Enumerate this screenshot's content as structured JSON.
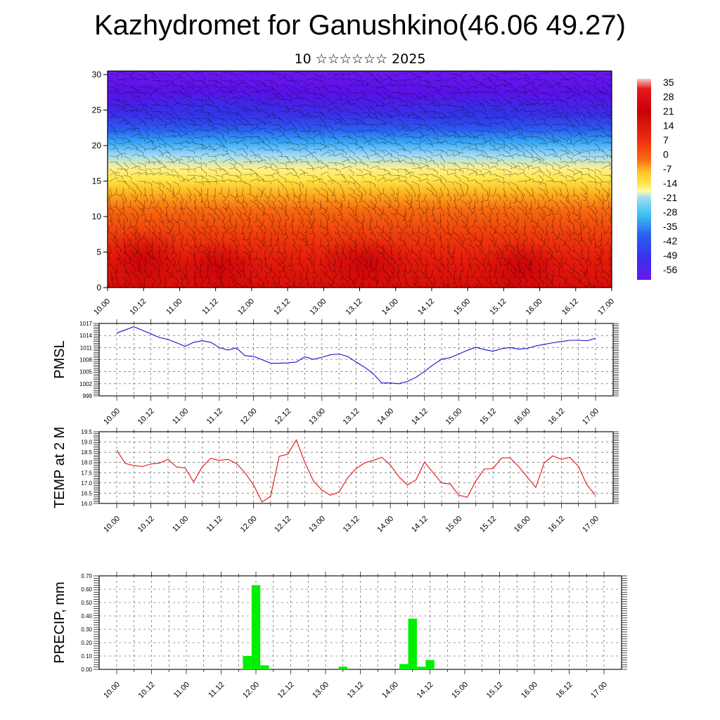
{
  "title": "Kazhydromet for Ganushkino(46.06 49.27)",
  "subtitle": "10 ☆☆☆☆☆☆ 2025",
  "time_ticks": [
    "10.00",
    "10.12",
    "11.00",
    "11.12",
    "12.00",
    "12.12",
    "13.00",
    "13.12",
    "14.00",
    "14.12",
    "15.00",
    "15.12",
    "16.00",
    "16.12",
    "17.00"
  ],
  "chart_data": [
    {
      "type": "heatmap",
      "description_of_fill": "temperature cross-section with wind barbs",
      "x_ticks": [
        "10.00",
        "10.12",
        "11.00",
        "11.12",
        "12.00",
        "12.12",
        "13.00",
        "13.12",
        "14.00",
        "14.12",
        "15.00",
        "15.12",
        "16.00",
        "16.12",
        "17.00"
      ],
      "y_ticks": [
        0,
        5,
        10,
        15,
        20,
        25,
        30
      ],
      "ylim": [
        0,
        30.5
      ],
      "colorbar_labels": [
        "35",
        "28",
        "21",
        "14",
        "7",
        "0",
        "-7",
        "-14",
        "-21",
        "-28",
        "-35",
        "-42",
        "-49",
        "-56"
      ],
      "colors": {
        "warm": "#e8170b",
        "hot": "#c8000a",
        "orange": "#f76a10",
        "yellow": "#ffe64a",
        "cyan": "#38c0f0",
        "blue": "#2a5ef0",
        "violet": "#6a18f0"
      }
    },
    {
      "type": "line",
      "ylabel": "PMSL",
      "color": "#1010d0",
      "y_ticks": [
        "1017",
        "1014",
        "1011",
        "1008",
        "1005",
        "1002",
        "999"
      ],
      "ylim": [
        999,
        1017
      ],
      "x": [
        0,
        3,
        6,
        9,
        12,
        15,
        18,
        21,
        24,
        27,
        30,
        33,
        36,
        39,
        42,
        45,
        48,
        51,
        54,
        57,
        60,
        63,
        66,
        69,
        72,
        75,
        78,
        81,
        84,
        87,
        90,
        93,
        96,
        99,
        102,
        105,
        108,
        111,
        114,
        117,
        120,
        123,
        126,
        129,
        132,
        135,
        138,
        141,
        144,
        147,
        150,
        153,
        156,
        159,
        162,
        165,
        168
      ],
      "values": [
        1014.6,
        1015.4,
        1016.2,
        1015.3,
        1014.4,
        1013.5,
        1013.0,
        1012.2,
        1011.3,
        1012.3,
        1012.7,
        1012.3,
        1011.0,
        1010.4,
        1010.9,
        1009.0,
        1008.8,
        1008.0,
        1007.1,
        1007.1,
        1007.2,
        1007.4,
        1008.7,
        1008.1,
        1008.6,
        1009.2,
        1009.4,
        1008.8,
        1007.4,
        1006.1,
        1004.5,
        1002.2,
        1002.2,
        1002.0,
        1002.6,
        1003.6,
        1005.1,
        1006.7,
        1008.1,
        1008.5,
        1009.4,
        1010.3,
        1011.1,
        1010.5,
        1010.1,
        1010.7,
        1011.0,
        1010.6,
        1010.8,
        1011.4,
        1011.8,
        1012.2,
        1012.5,
        1012.8,
        1012.8,
        1012.7,
        1013.3
      ]
    },
    {
      "type": "line",
      "ylabel": "TEMP at 2 M",
      "color": "#e01010",
      "y_ticks": [
        "19.5",
        "19.0",
        "18.5",
        "18.0",
        "17.5",
        "17.0",
        "16.5",
        "16.0"
      ],
      "ylim": [
        16.0,
        19.5
      ],
      "x": [
        0,
        3,
        6,
        9,
        12,
        15,
        18,
        21,
        24,
        27,
        30,
        33,
        36,
        39,
        42,
        45,
        48,
        51,
        54,
        57,
        60,
        63,
        66,
        69,
        72,
        75,
        78,
        81,
        84,
        87,
        90,
        93,
        96,
        99,
        102,
        105,
        108,
        111,
        114,
        117,
        120,
        123,
        126,
        129,
        132,
        135,
        138,
        141,
        144,
        147,
        150,
        153,
        156,
        159,
        162,
        165,
        168
      ],
      "values": [
        18.6,
        17.95,
        17.85,
        17.8,
        17.92,
        17.97,
        18.15,
        17.78,
        17.73,
        17.05,
        17.78,
        18.2,
        18.1,
        18.15,
        17.95,
        17.5,
        16.9,
        16.07,
        16.35,
        18.3,
        18.4,
        19.1,
        18.0,
        17.1,
        16.65,
        16.4,
        16.55,
        17.25,
        17.7,
        17.98,
        18.1,
        18.25,
        17.88,
        17.3,
        16.9,
        17.15,
        18.02,
        17.5,
        17.0,
        16.95,
        16.4,
        16.3,
        17.1,
        17.68,
        17.7,
        18.22,
        18.23,
        17.8,
        17.3,
        16.78,
        17.98,
        18.32,
        18.15,
        18.25,
        17.8,
        16.9,
        16.4
      ]
    },
    {
      "type": "bar",
      "ylabel": "PRECIP, mm",
      "color": "#00ee00",
      "y_ticks": [
        "0.70",
        "0.60",
        "0.50",
        "0.40",
        "0.30",
        "0.20",
        "0.10",
        "0.00"
      ],
      "ylim": [
        0,
        0.7
      ],
      "x": [
        45,
        48,
        51,
        78,
        99,
        102,
        105,
        108
      ],
      "values": [
        0.1,
        0.63,
        0.03,
        0.02,
        0.04,
        0.38,
        0.02,
        0.07
      ]
    }
  ]
}
